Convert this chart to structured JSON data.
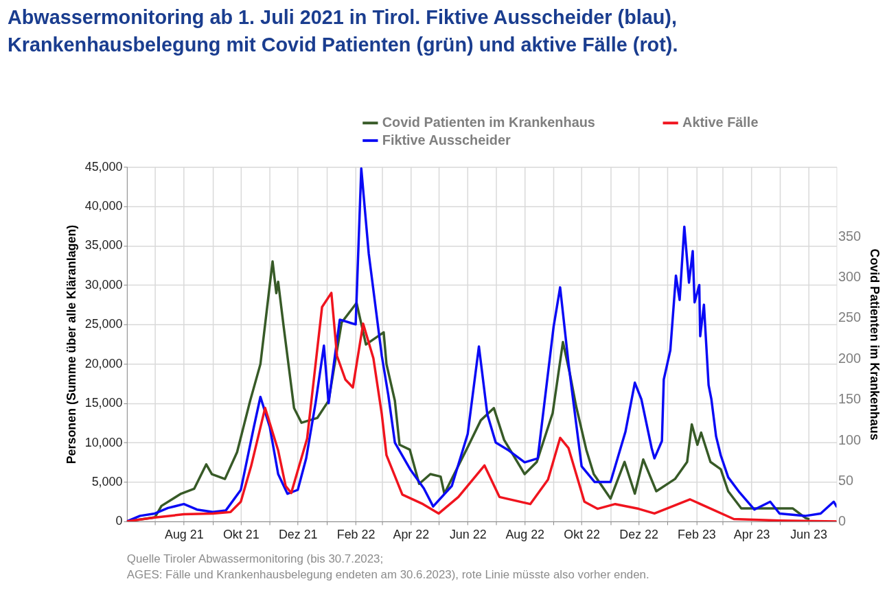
{
  "chart_data": {
    "type": "line",
    "title": "Abwassermonitoring ab 1. Juli 2021 in Tirol. Fiktive Ausscheider (blau),\nKrankenhausbelegung mit Covid Patienten (grün) und aktive Fälle (rot).",
    "ylabel": "Personen (Summe über alle Kläranlagen)",
    "y2label": "Covid Patienten im Krankenhaus",
    "xlim": [
      "2021-06-01",
      "2023-07-01"
    ],
    "xticks": [
      {
        "value": "2021-07-01",
        "label": null
      },
      {
        "value": "2021-08-01",
        "label": "Aug 21"
      },
      {
        "value": "2021-09-01",
        "label": null
      },
      {
        "value": "2021-10-01",
        "label": "Okt 21"
      },
      {
        "value": "2021-11-01",
        "label": null
      },
      {
        "value": "2021-12-01",
        "label": "Dez 21"
      },
      {
        "value": "2022-01-01",
        "label": null
      },
      {
        "value": "2022-02-01",
        "label": "Feb 22"
      },
      {
        "value": "2022-03-01",
        "label": null
      },
      {
        "value": "2022-04-01",
        "label": "Apr 22"
      },
      {
        "value": "2022-05-01",
        "label": null
      },
      {
        "value": "2022-06-01",
        "label": "Jun 22"
      },
      {
        "value": "2022-07-01",
        "label": null
      },
      {
        "value": "2022-08-01",
        "label": "Aug 22"
      },
      {
        "value": "2022-09-01",
        "label": null
      },
      {
        "value": "2022-10-01",
        "label": "Okt 22"
      },
      {
        "value": "2022-11-01",
        "label": null
      },
      {
        "value": "2022-12-01",
        "label": "Dez 22"
      },
      {
        "value": "2023-01-01",
        "label": null
      },
      {
        "value": "2023-02-01",
        "label": "Feb 23"
      },
      {
        "value": "2023-03-01",
        "label": null
      },
      {
        "value": "2023-04-01",
        "label": "Apr 23"
      },
      {
        "value": "2023-05-01",
        "label": null
      },
      {
        "value": "2023-06-01",
        "label": "Jun 23"
      }
    ],
    "ylim": [
      0,
      45000
    ],
    "yticks": [
      0,
      {
        "value": 5000,
        "label": "5,000"
      },
      {
        "value": 10000,
        "label": "10,000"
      },
      {
        "value": 15000,
        "label": "15,000"
      },
      {
        "value": 20000,
        "label": "20,000"
      },
      {
        "value": 25000,
        "label": "25,000"
      },
      {
        "value": 30000,
        "label": "30,000"
      },
      {
        "value": 35000,
        "label": "35,000"
      },
      {
        "value": 40000,
        "label": "40,000"
      },
      {
        "value": 45000,
        "label": "45,000"
      }
    ],
    "y2lim": [
      0,
      435
    ],
    "y2ticks": [
      0,
      50,
      100,
      150,
      200,
      250,
      300,
      350
    ],
    "grid": true,
    "legend": "top right",
    "series": [
      {
        "name": "Covid Patienten im Krankenhaus",
        "color": "#375a27",
        "axis": "y2",
        "x": [
          "2021-06-01",
          "2021-07-01",
          "2021-07-08",
          "2021-07-29",
          "2021-08-12",
          "2021-08-25",
          "2021-08-31",
          "2021-09-14",
          "2021-09-27",
          "2021-10-11",
          "2021-10-22",
          "2021-11-04",
          "2021-11-08",
          "2021-11-10",
          "2021-11-16",
          "2021-11-27",
          "2021-12-05",
          "2021-12-22",
          "2022-01-03",
          "2022-01-17",
          "2022-02-02",
          "2022-02-12",
          "2022-03-03",
          "2022-03-06",
          "2022-03-15",
          "2022-03-20",
          "2022-03-31",
          "2022-04-10",
          "2022-04-22",
          "2022-05-03",
          "2022-05-07",
          "2022-06-01",
          "2022-06-15",
          "2022-06-29",
          "2022-07-10",
          "2022-08-01",
          "2022-08-14",
          "2022-08-31",
          "2022-09-11",
          "2022-09-19",
          "2022-09-25",
          "2022-10-06",
          "2022-10-14",
          "2022-11-01",
          "2022-11-16",
          "2022-11-27",
          "2022-12-06",
          "2022-12-20",
          "2023-01-09",
          "2023-01-22",
          "2023-01-27",
          "2023-02-02",
          "2023-02-06",
          "2023-02-16",
          "2023-02-27",
          "2023-03-07",
          "2023-03-21",
          "2023-04-18",
          "2023-05-15",
          "2023-05-29",
          "2023-06-01"
        ],
        "values": [
          0,
          5,
          19,
          34,
          40,
          70,
          58,
          52,
          85,
          148,
          193,
          319,
          280,
          294,
          238,
          139,
          121,
          127,
          148,
          244,
          268,
          217,
          232,
          193,
          148,
          94,
          88,
          46,
          58,
          55,
          34,
          91,
          124,
          139,
          100,
          58,
          73,
          133,
          220,
          178,
          142,
          88,
          58,
          28,
          73,
          34,
          76,
          37,
          52,
          73,
          119,
          94,
          109,
          73,
          64,
          37,
          16,
          16,
          16,
          4,
          3
        ]
      },
      {
        "name": "Fiktive Ausscheider",
        "color": "#0a0af5",
        "x": [
          "2021-06-01",
          "2021-06-15",
          "2021-07-01",
          "2021-07-15",
          "2021-08-01",
          "2021-08-15",
          "2021-09-01",
          "2021-09-15",
          "2021-10-01",
          "2021-10-15",
          "2021-10-22",
          "2021-11-01",
          "2021-11-10",
          "2021-11-20",
          "2021-12-01",
          "2021-12-10",
          "2021-12-20",
          "2021-12-29",
          "2022-01-03",
          "2022-01-15",
          "2022-02-01",
          "2022-02-07",
          "2022-02-15",
          "2022-03-01",
          "2022-03-08",
          "2022-03-15",
          "2022-04-01",
          "2022-04-15",
          "2022-04-25",
          "2022-05-15",
          "2022-06-01",
          "2022-06-13",
          "2022-06-22",
          "2022-07-01",
          "2022-07-15",
          "2022-08-01",
          "2022-08-15",
          "2022-09-01",
          "2022-09-08",
          "2022-09-17",
          "2022-10-01",
          "2022-10-15",
          "2022-11-01",
          "2022-11-17",
          "2022-11-27",
          "2022-12-04",
          "2022-12-15",
          "2022-12-18",
          "2022-12-26",
          "2022-12-28",
          "2023-01-04",
          "2023-01-10",
          "2023-01-14",
          "2023-01-19",
          "2023-01-24",
          "2023-01-28",
          "2023-01-30",
          "2023-02-04",
          "2023-02-05",
          "2023-02-09",
          "2023-02-14",
          "2023-02-17",
          "2023-02-22",
          "2023-02-27",
          "2023-03-07",
          "2023-03-19",
          "2023-04-04",
          "2023-04-21",
          "2023-05-01",
          "2023-05-29",
          "2023-06-14",
          "2023-06-28",
          "2023-07-01"
        ],
        "values": [
          0,
          700,
          1000,
          1700,
          2200,
          1500,
          1200,
          1400,
          4000,
          12000,
          15800,
          12000,
          6000,
          3500,
          4000,
          8000,
          15000,
          22300,
          15000,
          25600,
          25000,
          44800,
          34000,
          21000,
          16000,
          10000,
          6500,
          4200,
          1900,
          4500,
          11100,
          22200,
          13600,
          10000,
          9000,
          7500,
          8000,
          24700,
          29700,
          20000,
          7000,
          5000,
          5000,
          11400,
          17600,
          15500,
          9300,
          8000,
          10200,
          18000,
          21700,
          31200,
          28100,
          37400,
          30300,
          34300,
          27800,
          30000,
          23500,
          27500,
          17300,
          15500,
          10800,
          8400,
          5600,
          3700,
          1500,
          2500,
          1000,
          700,
          1000,
          2500,
          1900
        ]
      },
      {
        "name": "Aktive Fälle",
        "color": "#f0141e",
        "x": [
          "2021-06-01",
          "2021-07-01",
          "2021-08-01",
          "2021-09-01",
          "2021-09-20",
          "2021-10-01",
          "2021-10-12",
          "2021-10-27",
          "2021-11-10",
          "2021-11-18",
          "2021-11-24",
          "2021-12-11",
          "2021-12-27",
          "2022-01-06",
          "2022-01-12",
          "2022-01-21",
          "2022-01-29",
          "2022-02-09",
          "2022-02-20",
          "2022-03-01",
          "2022-03-06",
          "2022-03-23",
          "2022-04-14",
          "2022-05-01",
          "2022-05-22",
          "2022-06-19",
          "2022-07-05",
          "2022-08-07",
          "2022-08-26",
          "2022-09-08",
          "2022-09-17",
          "2022-10-04",
          "2022-10-18",
          "2022-11-06",
          "2022-12-01",
          "2022-12-18",
          "2023-01-25",
          "2023-03-13",
          "2023-05-01",
          "2023-07-01"
        ],
        "values": [
          0,
          500,
          900,
          1000,
          1200,
          2500,
          7000,
          14400,
          9000,
          4500,
          3600,
          10500,
          27200,
          29000,
          21000,
          18000,
          17000,
          25100,
          20700,
          13600,
          8400,
          3400,
          2200,
          1000,
          3100,
          7100,
          3100,
          2200,
          5300,
          10600,
          9300,
          2500,
          1600,
          2200,
          1600,
          1000,
          2800,
          300,
          100,
          0
        ]
      }
    ],
    "annotations": [
      "Quelle Tiroler Abwassermonitoring (bis 30.7.2023;",
      "AGES: Fälle und Krankenhausbelegung endeten am 30.6.2023), rote Linie müsste also vorher enden."
    ]
  }
}
